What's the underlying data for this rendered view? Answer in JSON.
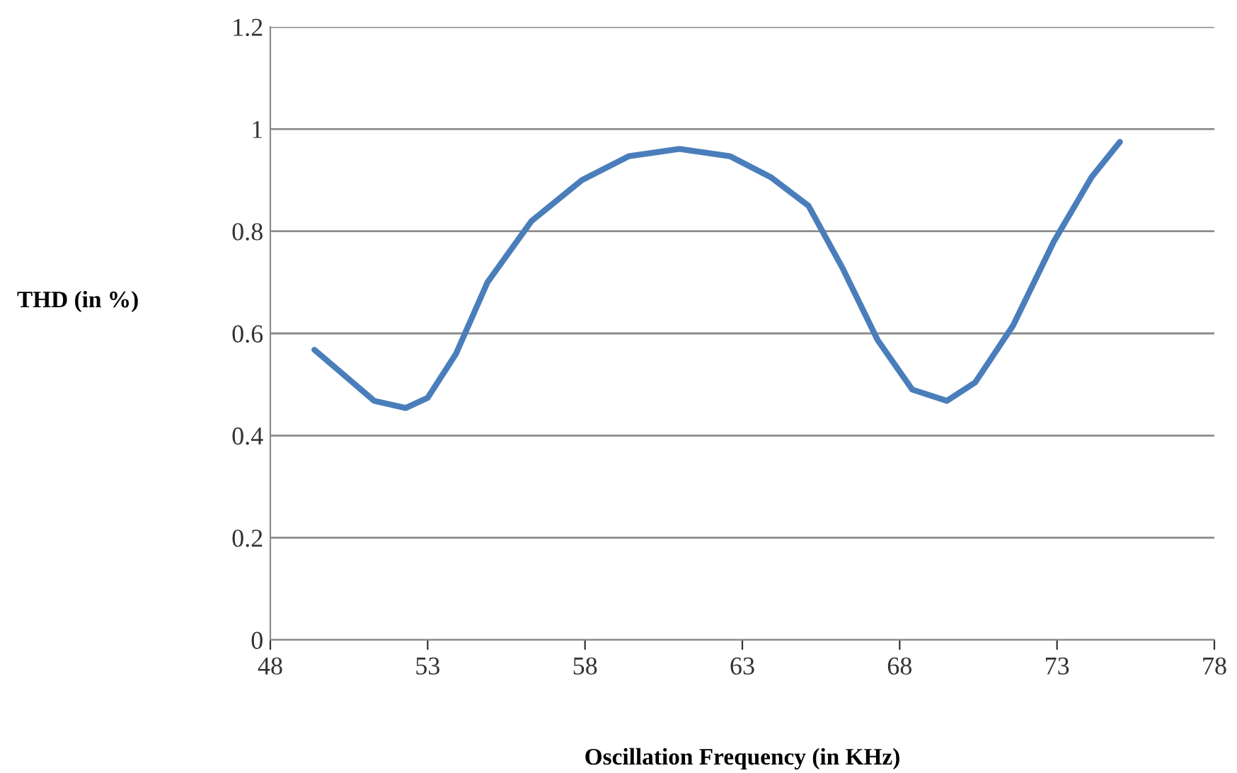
{
  "chart_data": {
    "type": "line",
    "xlabel": "Oscillation Frequency (in KHz)",
    "ylabel": "THD (in %)",
    "x": [
      49.4,
      50.2,
      51.3,
      52.3,
      53.0,
      53.9,
      54.9,
      56.3,
      57.9,
      59.4,
      61.0,
      62.6,
      63.9,
      65.1,
      66.2,
      67.3,
      68.4,
      69.5,
      70.4,
      71.6,
      72.9,
      74.1,
      75.0
    ],
    "series": [
      {
        "color": "#4a7ebb",
        "values": [
          0.568,
          0.526,
          0.468,
          0.454,
          0.474,
          0.56,
          0.7,
          0.82,
          0.9,
          0.947,
          0.961,
          0.947,
          0.906,
          0.85,
          0.726,
          0.587,
          0.49,
          0.468,
          0.504,
          0.615,
          0.78,
          0.906,
          0.975
        ]
      }
    ],
    "xlim": [
      48,
      78
    ],
    "xticks": [
      48,
      53,
      58,
      63,
      68,
      73,
      78
    ],
    "ylim": [
      0,
      1.2
    ],
    "yticks": [
      0,
      0.2,
      0.4,
      0.6,
      0.8,
      1,
      1.2
    ],
    "grid": "y",
    "legend": false,
    "marker": "none",
    "line_style": "solid"
  }
}
